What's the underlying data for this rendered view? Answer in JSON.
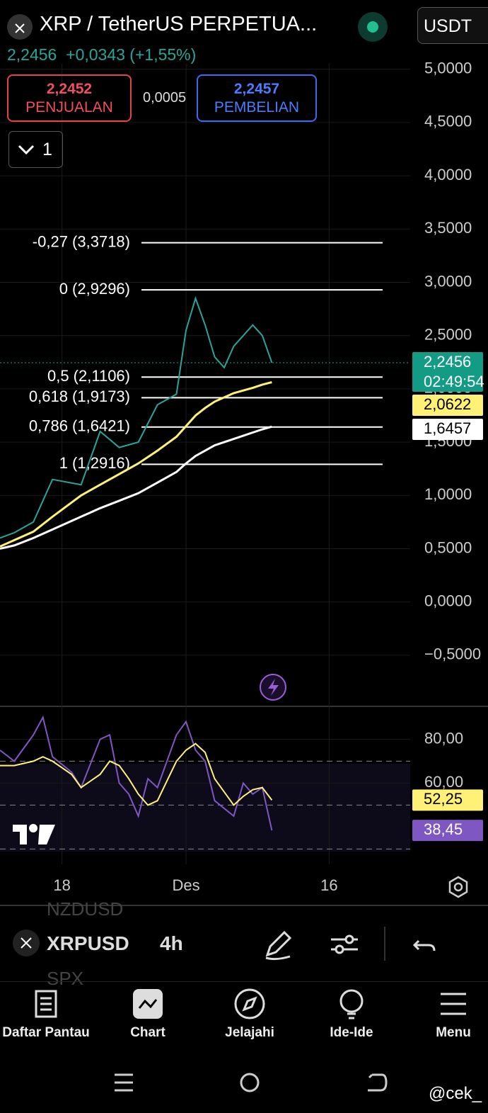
{
  "header": {
    "title": "XRP / TetherUS PERPETUA...",
    "currency": "USDT",
    "last_price": "2,2456",
    "change": "+0,0343 (+1,55%)"
  },
  "order_panel": {
    "sell_price": "2,2452",
    "sell_label": "PENJUALAN",
    "spread": "0,0005",
    "buy_price": "2,2457",
    "buy_label": "PEMBELIAN",
    "collapse_count": "1"
  },
  "chart_data": [
    {
      "type": "line",
      "grid": true,
      "xlim": [
        11.5,
        54.5
      ],
      "xticks": [
        18,
        {
          "value": 31,
          "label": "Des"
        },
        {
          "value": 46,
          "label": "16"
        }
      ],
      "ylim": [
        -0.98,
        5.65
      ],
      "yticks": [
        {
          "value": 5,
          "label": "5,0000"
        },
        {
          "value": 4.5,
          "label": "4,5000"
        },
        {
          "value": 4,
          "label": "4,0000"
        },
        {
          "value": 3.5,
          "label": "3,5000"
        },
        {
          "value": 3,
          "label": "3,0000"
        },
        {
          "value": 2.5,
          "label": "2,5000"
        },
        {
          "value": 2,
          "label": "2,0000"
        },
        {
          "value": 1.5,
          "label": "1,5000"
        },
        {
          "value": 1,
          "label": "1,0000"
        },
        {
          "value": 0.5,
          "label": "0,5000"
        },
        {
          "value": 0,
          "label": "0,0000"
        },
        {
          "value": -0.5,
          "label": "−0,5000"
        }
      ],
      "x": [
        11.5,
        13,
        15,
        17,
        20,
        22,
        24,
        26,
        28,
        30,
        31,
        32,
        33,
        34,
        35,
        36,
        38,
        39,
        40
      ],
      "series": [
        {
          "color": "#26a69a",
          "values": [
            0.6,
            0.65,
            0.75,
            1.15,
            1.1,
            1.6,
            1.45,
            1.5,
            1.85,
            1.95,
            2.55,
            2.85,
            2.6,
            2.3,
            2.2,
            2.4,
            2.6,
            2.5,
            2.2456
          ],
          "value_labels": [
            null,
            null,
            null,
            null,
            null,
            null,
            null,
            null,
            null,
            null,
            null,
            null,
            null,
            null,
            null,
            null,
            null,
            null,
            "2,2456"
          ]
        },
        {
          "color": "#fff176",
          "values": [
            0.52,
            0.58,
            0.66,
            0.8,
            1.0,
            1.1,
            1.2,
            1.3,
            1.42,
            1.55,
            1.65,
            1.75,
            1.82,
            1.88,
            1.92,
            1.96,
            2.01,
            2.04,
            2.0622
          ],
          "value_labels": [
            null,
            null,
            null,
            null,
            null,
            null,
            null,
            null,
            null,
            null,
            null,
            null,
            null,
            null,
            null,
            null,
            null,
            null,
            "2,0622"
          ]
        },
        {
          "color": "#ffffff",
          "values": [
            0.5,
            0.53,
            0.6,
            0.68,
            0.8,
            0.88,
            0.95,
            1.02,
            1.12,
            1.22,
            1.3,
            1.37,
            1.42,
            1.47,
            1.5,
            1.53,
            1.59,
            1.62,
            1.6457
          ],
          "value_labels": [
            null,
            null,
            null,
            null,
            null,
            null,
            null,
            null,
            null,
            null,
            null,
            null,
            null,
            null,
            null,
            null,
            null,
            null,
            "1,6457"
          ]
        }
      ],
      "countdown": "02:49:54",
      "fib_levels": [
        {
          "label": "-0,27 (3,3718)",
          "value": 3.3718
        },
        {
          "label": "0 (2,9296)",
          "value": 2.9296
        },
        {
          "label": "0,5 (2,1106)",
          "value": 2.1106
        },
        {
          "label": "0,618 (1,9173)",
          "value": 1.9173
        },
        {
          "label": "0,786 (1,6421)",
          "value": 1.6421
        },
        {
          "label": "1 (1,2916)",
          "value": 1.2916
        }
      ]
    },
    {
      "type": "line",
      "grid": true,
      "xlim": [
        11.5,
        54.5
      ],
      "ylim": [
        23,
        95
      ],
      "yticks": [
        {
          "value": 80,
          "label": "80,00"
        },
        {
          "value": 60,
          "label": "60,00"
        }
      ],
      "levels": [
        70,
        50,
        30
      ],
      "x": [
        11.5,
        13,
        15,
        16,
        17,
        19,
        20,
        22,
        23,
        24,
        25,
        26,
        27,
        28,
        30,
        31,
        32,
        33,
        34,
        36,
        37,
        38,
        39,
        40
      ],
      "series": [
        {
          "color": "#7e57c2",
          "values": [
            75,
            70,
            82,
            90,
            72,
            65,
            58,
            80,
            82,
            60,
            55,
            45,
            62,
            58,
            82,
            88,
            75,
            70,
            52,
            45,
            60,
            55,
            58,
            38.45
          ],
          "value_labels": [
            null,
            null,
            null,
            null,
            null,
            null,
            null,
            null,
            null,
            null,
            null,
            null,
            null,
            null,
            null,
            null,
            null,
            null,
            null,
            null,
            null,
            null,
            null,
            "38,45"
          ]
        },
        {
          "color": "#fff176",
          "values": [
            68,
            68,
            70,
            72,
            70,
            64,
            58,
            64,
            70,
            68,
            62,
            55,
            50,
            52,
            70,
            75,
            78,
            74,
            62,
            50,
            54,
            57,
            58,
            52.25
          ],
          "value_labels": [
            null,
            null,
            null,
            null,
            null,
            null,
            null,
            null,
            null,
            null,
            null,
            null,
            null,
            null,
            null,
            null,
            null,
            null,
            null,
            null,
            null,
            null,
            null,
            "52,25"
          ]
        }
      ]
    }
  ],
  "toolbar": {
    "symbol": "XRPUSD",
    "interval": "4h",
    "watchlist_above": "NZDUSD",
    "watchlist_below": "SPX"
  },
  "nav": [
    {
      "label": "Daftar Pantau"
    },
    {
      "label": "Chart"
    },
    {
      "label": "Jelajahi"
    },
    {
      "label": "Ide-Ide"
    },
    {
      "label": "Menu"
    }
  ],
  "watermark": "@cek_"
}
